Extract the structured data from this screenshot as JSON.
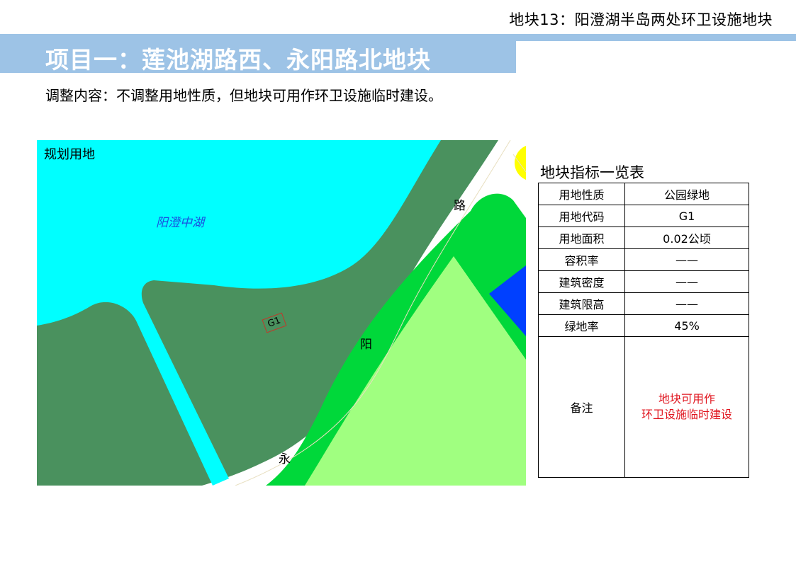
{
  "header": {
    "page_title": "地块13：阳澄湖半岛两处环卫设施地块"
  },
  "banner": {
    "title": "项目一：莲池湖路西、永阳路北地块"
  },
  "subtitle": "调整内容：不调整用地性质，但地块可用作环卫设施临时建设。",
  "map": {
    "label": "规划用地",
    "lake_label": "阳澄中湖",
    "road_chars": [
      "路",
      "阳",
      "永"
    ],
    "parcel_code": "G1",
    "colors": {
      "lake": "#00ffff",
      "park_green": "#4a915e",
      "green_strip": "#00d83a",
      "light_green": "#a0ff80",
      "blue": "#0040ff",
      "yellow": "#ffff00",
      "road": "#ffffff"
    }
  },
  "table": {
    "title": "地块指标一览表",
    "rows": [
      {
        "key": "用地性质",
        "value": "公园绿地"
      },
      {
        "key": "用地代码",
        "value": "G1"
      },
      {
        "key": "用地面积",
        "value": "0.02公顷"
      },
      {
        "key": "容积率",
        "value": "——"
      },
      {
        "key": "建筑密度",
        "value": "——"
      },
      {
        "key": "建筑限高",
        "value": "——"
      },
      {
        "key": "绿地率",
        "value": "45%"
      }
    ],
    "remark": {
      "key": "备注",
      "line1": "地块可用作",
      "line2": "环卫设施临时建设"
    }
  }
}
